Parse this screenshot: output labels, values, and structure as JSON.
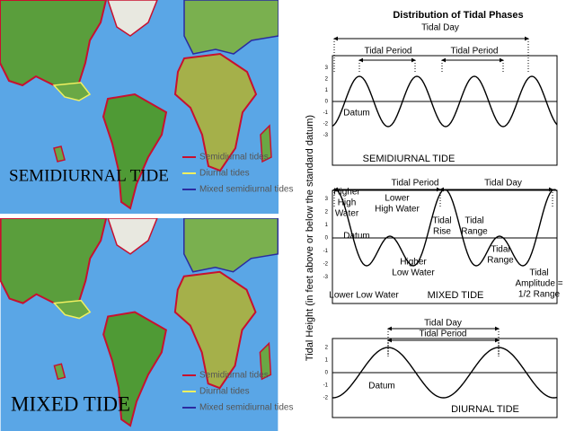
{
  "maps": [
    {
      "legend": [
        "Semidiurnal tides",
        "Diurnal tides",
        "Mixed semidiurnal tides"
      ],
      "caption": "SEMIDIURNAL TIDE"
    },
    {
      "legend": [
        "Semidiurnal tides",
        "Diurnal tides",
        "Mixed semidiurnal tides"
      ],
      "caption": "MIXED TIDE"
    }
  ],
  "diagram": {
    "title": "Distribution of Tidal Phases",
    "y_axis_label": "Tidal Height (in feet above or below the standard datum)",
    "panels": [
      {
        "caption": "SEMIDIURNAL TIDE",
        "ticks": [
          3,
          2,
          1,
          0,
          -1,
          -2,
          -3
        ],
        "labels": [
          [
            "Tidal Day"
          ],
          [
            "Tidal Period"
          ],
          [
            "Tidal Period"
          ],
          [
            "Datum"
          ]
        ]
      },
      {
        "caption": "MIXED TIDE",
        "ticks": [
          3,
          2,
          1,
          0,
          -1,
          -2,
          -3
        ],
        "labels": [
          [
            "Tidal Period"
          ],
          [
            "Tidal Day"
          ],
          [
            "Higher",
            "High",
            "Water"
          ],
          [
            "Lower",
            "High Water"
          ],
          [
            "Datum"
          ],
          [
            "Tidal",
            "Rise"
          ],
          [
            "Tidal",
            "Range"
          ],
          [
            "Higher",
            "Low Water"
          ],
          [
            "Tidal",
            "Range"
          ],
          [
            "Tidal",
            "Amplitude =",
            "1/2 Range"
          ],
          [
            "Lower Low Water"
          ]
        ]
      },
      {
        "caption": "DIURNAL TIDE",
        "ticks": [
          2,
          1,
          0,
          -1,
          -2
        ],
        "labels": [
          [
            "Tidal Day"
          ],
          [
            "Tidal Period"
          ],
          [
            "Datum"
          ]
        ]
      }
    ]
  }
}
